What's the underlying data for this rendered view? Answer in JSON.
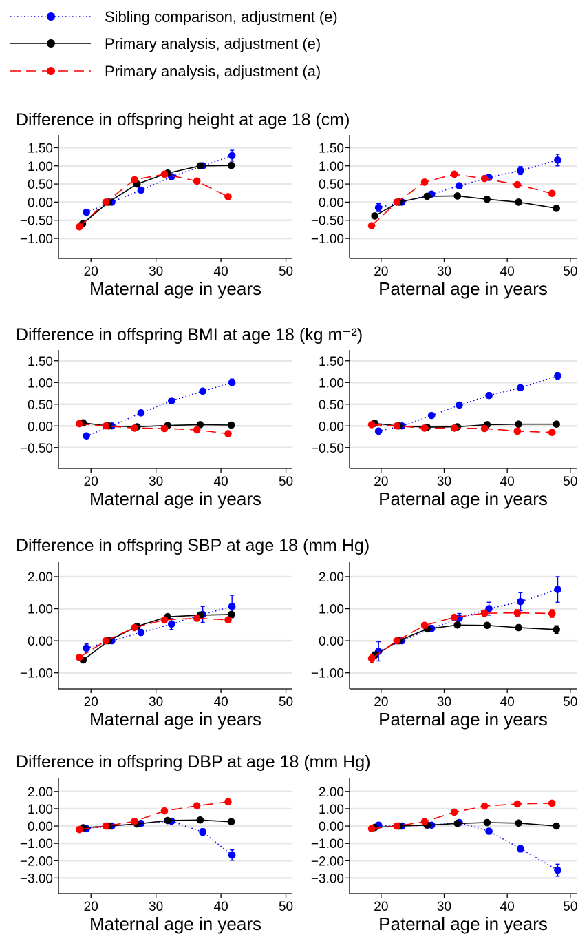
{
  "colors": {
    "sibling": "#0000ff",
    "primary_e": "#000000",
    "primary_a": "#ff0000",
    "grid": "#e6e6e6"
  },
  "legend": [
    {
      "key": "sib",
      "label": "Sibling comparison, adjustment (e)"
    },
    {
      "key": "pe",
      "label": "Primary analysis, adjustment (e)"
    },
    {
      "key": "pa",
      "label": "Primary analysis, adjustment (a)"
    }
  ],
  "chart_data": [
    {
      "type": "line",
      "title": "Difference in offspring height at age 18 (cm)",
      "xlabel": "Maternal age in years",
      "xlim": [
        15,
        51
      ],
      "xticks": [
        20,
        30,
        40,
        50
      ],
      "ylim": [
        -1.55,
        1.85
      ],
      "yticks": [
        -1.0,
        -0.5,
        0.0,
        0.5,
        1.0,
        1.5
      ],
      "ytick_labels": [
        "−1.00",
        "−0.50",
        "0.00",
        "0.50",
        "1.00",
        "1.50"
      ],
      "grid": true,
      "series": [
        {
          "name": "Sibling comparison, adjustment (e)",
          "style": "sib",
          "x": [
            19.3,
            23.2,
            27.7,
            32.4,
            37.2,
            41.7
          ],
          "y": [
            -0.28,
            0.0,
            0.33,
            0.7,
            1.0,
            1.28
          ],
          "err": [
            0.06,
            0.04,
            0.05,
            0.06,
            0.08,
            0.15
          ]
        },
        {
          "name": "Primary analysis, adjustment (e)",
          "style": "pe",
          "x": [
            18.7,
            22.7,
            27.1,
            31.8,
            36.8,
            41.6
          ],
          "y": [
            -0.6,
            0.0,
            0.5,
            0.8,
            1.0,
            1.01
          ]
        },
        {
          "name": "Primary analysis, adjustment (a)",
          "style": "pa",
          "x": [
            18.2,
            22.3,
            26.7,
            31.3,
            36.3,
            41.1
          ],
          "y": [
            -0.68,
            0.0,
            0.62,
            0.77,
            0.58,
            0.15
          ]
        }
      ]
    },
    {
      "type": "line",
      "xlabel": "Paternal age in years",
      "xlim": [
        15,
        51
      ],
      "xticks": [
        20,
        30,
        40,
        50
      ],
      "ylim": [
        -1.55,
        1.85
      ],
      "yticks": [
        -1.0,
        -0.5,
        0.0,
        0.5,
        1.0,
        1.5
      ],
      "ytick_labels": [
        "−1.00",
        "−0.50",
        "0.00",
        "0.50",
        "1.00",
        "1.50"
      ],
      "grid": true,
      "series": [
        {
          "name": "Sibling comparison, adjustment (e)",
          "style": "sib",
          "x": [
            19.6,
            23.3,
            28.0,
            32.4,
            37.1,
            42.1,
            48.0
          ],
          "y": [
            -0.15,
            0.0,
            0.22,
            0.45,
            0.68,
            0.87,
            1.16
          ],
          "err": [
            0.11,
            0.05,
            0.05,
            0.05,
            0.07,
            0.11,
            0.16
          ]
        },
        {
          "name": "Primary analysis, adjustment (e)",
          "style": "pe",
          "x": [
            19.0,
            22.8,
            27.3,
            32.1,
            36.8,
            41.8,
            47.8
          ],
          "y": [
            -0.38,
            0.0,
            0.16,
            0.17,
            0.08,
            0.0,
            -0.17
          ]
        },
        {
          "name": "Primary analysis, adjustment (a)",
          "style": "pa",
          "x": [
            18.5,
            22.5,
            26.9,
            31.6,
            36.4,
            41.6,
            47.1
          ],
          "y": [
            -0.65,
            0.0,
            0.55,
            0.77,
            0.65,
            0.48,
            0.24
          ]
        }
      ]
    },
    {
      "type": "line",
      "title": "Difference in offspring BMI at age 18 (kg m⁻²)",
      "xlabel": "Maternal age in years",
      "xlim": [
        15,
        51
      ],
      "xticks": [
        20,
        30,
        40,
        50
      ],
      "ylim": [
        -0.98,
        1.75
      ],
      "yticks": [
        -0.5,
        0.0,
        0.5,
        1.0,
        1.5
      ],
      "ytick_labels": [
        "−0.50",
        "0.00",
        "0.50",
        "1.00",
        "1.50"
      ],
      "grid": true,
      "series": [
        {
          "name": "Sibling comparison, adjustment (e)",
          "style": "sib",
          "x": [
            19.3,
            23.2,
            27.7,
            32.4,
            37.2,
            41.7
          ],
          "y": [
            -0.23,
            0.0,
            0.3,
            0.58,
            0.8,
            1.0
          ],
          "err": [
            0.05,
            0.03,
            0.04,
            0.05,
            0.05,
            0.08
          ]
        },
        {
          "name": "Primary analysis, adjustment (e)",
          "style": "pe",
          "x": [
            18.8,
            22.7,
            27.1,
            31.8,
            36.8,
            41.6
          ],
          "y": [
            0.07,
            0.0,
            -0.02,
            0.01,
            0.03,
            0.02
          ]
        },
        {
          "name": "Primary analysis, adjustment (a)",
          "style": "pa",
          "x": [
            18.2,
            22.3,
            26.7,
            31.3,
            36.3,
            41.1
          ],
          "y": [
            0.05,
            0.0,
            -0.05,
            -0.06,
            -0.09,
            -0.18
          ]
        }
      ]
    },
    {
      "type": "line",
      "xlabel": "Paternal age in years",
      "xlim": [
        15,
        51
      ],
      "xticks": [
        20,
        30,
        40,
        50
      ],
      "ylim": [
        -0.98,
        1.75
      ],
      "yticks": [
        -0.5,
        0.0,
        0.5,
        1.0,
        1.5
      ],
      "ytick_labels": [
        "−0.50",
        "0.00",
        "0.50",
        "1.00",
        "1.50"
      ],
      "grid": true,
      "series": [
        {
          "name": "Sibling comparison, adjustment (e)",
          "style": "sib",
          "x": [
            19.6,
            23.3,
            28.0,
            32.4,
            37.1,
            42.1,
            48.0
          ],
          "y": [
            -0.12,
            0.0,
            0.24,
            0.48,
            0.7,
            0.88,
            1.15
          ],
          "err": [
            0.04,
            0.03,
            0.04,
            0.04,
            0.05,
            0.05,
            0.08
          ]
        },
        {
          "name": "Primary analysis, adjustment (e)",
          "style": "pe",
          "x": [
            19.0,
            22.8,
            27.3,
            32.1,
            36.8,
            41.8,
            47.8
          ],
          "y": [
            0.06,
            0.0,
            -0.03,
            -0.02,
            0.03,
            0.04,
            0.04
          ]
        },
        {
          "name": "Primary analysis, adjustment (a)",
          "style": "pa",
          "x": [
            18.5,
            22.5,
            26.9,
            31.6,
            36.4,
            41.6,
            47.1
          ],
          "y": [
            0.03,
            0.0,
            -0.05,
            -0.05,
            -0.06,
            -0.12,
            -0.15
          ]
        }
      ]
    },
    {
      "type": "line",
      "title": "Difference in offspring SBP at age 18 (mm Hg)",
      "xlabel": "Maternal age in years",
      "xlim": [
        15,
        51
      ],
      "xticks": [
        20,
        30,
        40,
        50
      ],
      "ylim": [
        -1.5,
        2.45
      ],
      "yticks": [
        -1.0,
        0.0,
        1.0,
        2.0
      ],
      "ytick_labels": [
        "−1.00",
        "0.00",
        "1.00",
        "2.00"
      ],
      "grid": true,
      "series": [
        {
          "name": "Sibling comparison, adjustment (e)",
          "style": "sib",
          "x": [
            19.3,
            23.2,
            27.7,
            32.4,
            37.2,
            41.7
          ],
          "y": [
            -0.23,
            0.0,
            0.26,
            0.52,
            0.82,
            1.07
          ],
          "err": [
            0.13,
            0.07,
            0.09,
            0.17,
            0.25,
            0.35
          ]
        },
        {
          "name": "Primary analysis, adjustment (e)",
          "style": "pe",
          "x": [
            18.8,
            22.7,
            27.1,
            31.8,
            36.8,
            41.6
          ],
          "y": [
            -0.6,
            0.0,
            0.45,
            0.75,
            0.8,
            0.82
          ]
        },
        {
          "name": "Primary analysis, adjustment (a)",
          "style": "pa",
          "x": [
            18.2,
            22.3,
            26.7,
            31.3,
            36.3,
            41.1
          ],
          "y": [
            -0.52,
            0.0,
            0.41,
            0.65,
            0.7,
            0.65
          ]
        }
      ]
    },
    {
      "type": "line",
      "xlabel": "Paternal age in years",
      "xlim": [
        15,
        51
      ],
      "xticks": [
        20,
        30,
        40,
        50
      ],
      "ylim": [
        -1.5,
        2.45
      ],
      "yticks": [
        -1.0,
        0.0,
        1.0,
        2.0
      ],
      "ytick_labels": [
        "−1.00",
        "0.00",
        "1.00",
        "2.00"
      ],
      "grid": true,
      "series": [
        {
          "name": "Sibling comparison, adjustment (e)",
          "style": "sib",
          "x": [
            19.6,
            23.3,
            28.0,
            32.4,
            37.1,
            42.1,
            48.0
          ],
          "y": [
            -0.33,
            0.0,
            0.38,
            0.7,
            1.0,
            1.22,
            1.6
          ],
          "err": [
            0.3,
            0.08,
            0.1,
            0.15,
            0.2,
            0.28,
            0.4
          ]
        },
        {
          "name": "Primary analysis, adjustment (e)",
          "style": "pe",
          "x": [
            19.0,
            22.8,
            27.3,
            32.1,
            36.8,
            41.8,
            47.8
          ],
          "y": [
            -0.45,
            0.0,
            0.37,
            0.49,
            0.48,
            0.41,
            0.35
          ],
          "err": [
            0.1,
            0.05,
            0.06,
            0.07,
            0.08,
            0.09,
            0.12
          ]
        },
        {
          "name": "Primary analysis, adjustment (a)",
          "style": "pa",
          "x": [
            18.5,
            22.5,
            26.9,
            31.6,
            36.4,
            41.6,
            47.1
          ],
          "y": [
            -0.55,
            0.0,
            0.48,
            0.73,
            0.86,
            0.87,
            0.85
          ],
          "err": [
            0.12,
            0.05,
            0.06,
            0.08,
            0.09,
            0.1,
            0.12
          ]
        }
      ]
    },
    {
      "type": "line",
      "title": "Difference in offspring DBP at age 18 (mm Hg)",
      "xlabel": "Maternal age in years",
      "xlim": [
        15,
        51
      ],
      "xticks": [
        20,
        30,
        40,
        50
      ],
      "ylim": [
        -3.9,
        2.75
      ],
      "yticks": [
        -3.0,
        -2.0,
        -1.0,
        0.0,
        1.0,
        2.0
      ],
      "ytick_labels": [
        "−3.00",
        "−2.00",
        "−1.00",
        "0.00",
        "1.00",
        "2.00"
      ],
      "grid": true,
      "series": [
        {
          "name": "Sibling comparison, adjustment (e)",
          "style": "sib",
          "x": [
            19.3,
            23.2,
            27.7,
            32.4,
            37.2,
            41.7
          ],
          "y": [
            -0.15,
            0.0,
            0.15,
            0.28,
            -0.35,
            -1.68
          ],
          "err": [
            0.1,
            0.07,
            0.08,
            0.12,
            0.2,
            0.3
          ]
        },
        {
          "name": "Primary analysis, adjustment (e)",
          "style": "pe",
          "x": [
            18.8,
            22.7,
            27.1,
            31.8,
            36.8,
            41.6
          ],
          "y": [
            -0.1,
            0.0,
            0.12,
            0.32,
            0.35,
            0.25
          ]
        },
        {
          "name": "Primary analysis, adjustment (a)",
          "style": "pa",
          "x": [
            18.2,
            22.3,
            26.7,
            31.3,
            36.3,
            41.1
          ],
          "y": [
            -0.2,
            0.0,
            0.27,
            0.87,
            1.17,
            1.4
          ]
        }
      ]
    },
    {
      "type": "line",
      "xlabel": "Paternal age in years",
      "xlim": [
        15,
        51
      ],
      "xticks": [
        20,
        30,
        40,
        50
      ],
      "ylim": [
        -3.9,
        2.75
      ],
      "yticks": [
        -3.0,
        -2.0,
        -1.0,
        0.0,
        1.0,
        2.0
      ],
      "ytick_labels": [
        "−3.00",
        "−2.00",
        "−1.00",
        "0.00",
        "1.00",
        "2.00"
      ],
      "grid": true,
      "series": [
        {
          "name": "Sibling comparison, adjustment (e)",
          "style": "sib",
          "x": [
            19.6,
            23.3,
            28.0,
            32.4,
            37.1,
            42.1,
            48.0
          ],
          "y": [
            0.05,
            0.0,
            0.05,
            0.2,
            -0.3,
            -1.3,
            -2.55
          ],
          "err": [
            0.15,
            0.06,
            0.08,
            0.1,
            0.15,
            0.2,
            0.35
          ]
        },
        {
          "name": "Primary analysis, adjustment (e)",
          "style": "pe",
          "x": [
            19.0,
            22.8,
            27.3,
            32.1,
            36.8,
            41.8,
            47.8
          ],
          "y": [
            -0.08,
            0.0,
            0.05,
            0.15,
            0.2,
            0.17,
            0.0
          ]
        },
        {
          "name": "Primary analysis, adjustment (a)",
          "style": "pa",
          "x": [
            18.5,
            22.5,
            26.9,
            31.6,
            36.4,
            41.6,
            47.1
          ],
          "y": [
            -0.15,
            0.0,
            0.25,
            0.8,
            1.15,
            1.28,
            1.32
          ]
        }
      ]
    }
  ]
}
